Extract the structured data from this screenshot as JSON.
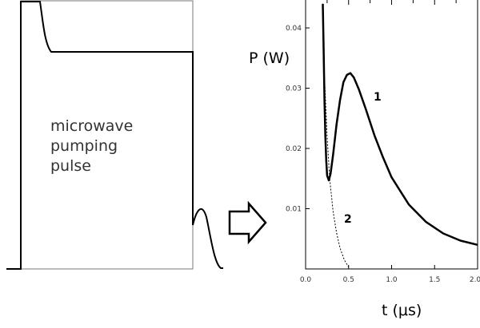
{
  "left_panel": {
    "label_lines": [
      "microwave",
      "pumping",
      "pulse"
    ]
  },
  "chart_data": {
    "type": "line",
    "title": "",
    "xlabel": "t (μs)",
    "ylabel": "P (W)",
    "xlim": [
      0.0,
      2.0
    ],
    "ylim": [
      0.0,
      0.046
    ],
    "x_ticks": [
      "0.0",
      "0.5",
      "1.0",
      "1.5",
      "2.0"
    ],
    "y_ticks": [
      "0.01",
      "0.02",
      "0.03",
      "0.04"
    ],
    "series": [
      {
        "name": "1",
        "style": "solid",
        "points": [
          [
            0.2,
            0.044
          ],
          [
            0.21,
            0.036
          ],
          [
            0.22,
            0.028
          ],
          [
            0.23,
            0.022
          ],
          [
            0.24,
            0.018
          ],
          [
            0.25,
            0.0155
          ],
          [
            0.27,
            0.0147
          ],
          [
            0.29,
            0.0158
          ],
          [
            0.32,
            0.019
          ],
          [
            0.36,
            0.024
          ],
          [
            0.4,
            0.028
          ],
          [
            0.44,
            0.031
          ],
          [
            0.48,
            0.0322
          ],
          [
            0.52,
            0.0325
          ],
          [
            0.56,
            0.0318
          ],
          [
            0.62,
            0.0298
          ],
          [
            0.7,
            0.0265
          ],
          [
            0.8,
            0.0222
          ],
          [
            0.9,
            0.0185
          ],
          [
            1.0,
            0.0152
          ],
          [
            1.2,
            0.0107
          ],
          [
            1.4,
            0.0078
          ],
          [
            1.6,
            0.0059
          ],
          [
            1.8,
            0.0047
          ],
          [
            2.0,
            0.004
          ]
        ]
      },
      {
        "name": "2",
        "style": "dashed",
        "points": [
          [
            0.2,
            0.044
          ],
          [
            0.22,
            0.032
          ],
          [
            0.25,
            0.022
          ],
          [
            0.28,
            0.015
          ],
          [
            0.32,
            0.0095
          ],
          [
            0.36,
            0.006
          ],
          [
            0.4,
            0.0035
          ],
          [
            0.45,
            0.0015
          ],
          [
            0.5,
            0.0003
          ]
        ]
      }
    ]
  }
}
